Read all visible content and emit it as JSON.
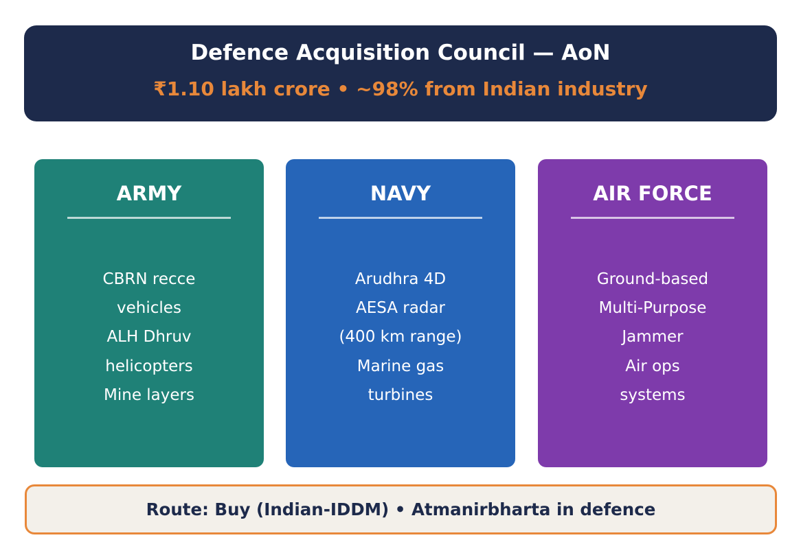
{
  "colors": {
    "header_bg": "#1d2a4b",
    "accent_orange": "#e8883a",
    "army": "#1f8177",
    "navy": "#2665b8",
    "air_force": "#7e3bab",
    "footer_bg": "#f3f0ea",
    "footer_text": "#1d2a4b"
  },
  "header": {
    "title": "Defence Acquisition Council — AoN",
    "subtitle": "₹1.10 lakh crore  •  ~98% from Indian industry"
  },
  "cards": [
    {
      "title": "ARMY",
      "lines": [
        "CBRN recce",
        "vehicles",
        "ALH Dhruv",
        "helicopters",
        "Mine layers"
      ]
    },
    {
      "title": "NAVY",
      "lines": [
        "Arudhra 4D",
        "AESA radar",
        "(400 km range)",
        "Marine gas",
        "turbines"
      ]
    },
    {
      "title": "AIR FORCE",
      "lines": [
        "Ground-based",
        "Multi-Purpose",
        "Jammer",
        "Air ops",
        "systems"
      ]
    }
  ],
  "footer": {
    "text": "Route: Buy (Indian-IDDM)  •  Atmanirbharta in defence"
  }
}
